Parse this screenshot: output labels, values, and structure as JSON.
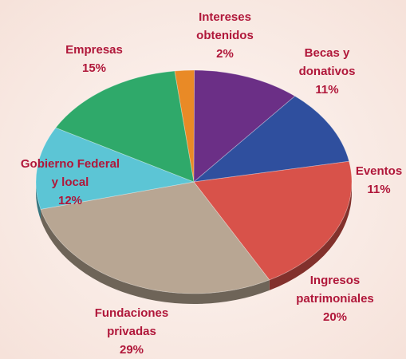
{
  "chart_data": {
    "type": "pie",
    "categories": [
      [
        "Intereses",
        "obtenidos"
      ],
      [
        "Becas y",
        "donativos"
      ],
      [
        "Eventos"
      ],
      [
        "Ingresos",
        "patrimoniales"
      ],
      [
        "Fundaciones",
        "privadas"
      ],
      [
        "Gobierno Federal",
        "y local"
      ],
      [
        "Empresas"
      ]
    ],
    "values": [
      2,
      11,
      11,
      20,
      29,
      12,
      15
    ],
    "value_labels": [
      "2%",
      "11%",
      "11%",
      "20%",
      "29%",
      "12%",
      "15%"
    ],
    "colors": [
      "#e98a26",
      "#6b2f86",
      "#2f4f9e",
      "#d8524a",
      "#b8a693",
      "#5cc5d5",
      "#2fa96a"
    ]
  }
}
